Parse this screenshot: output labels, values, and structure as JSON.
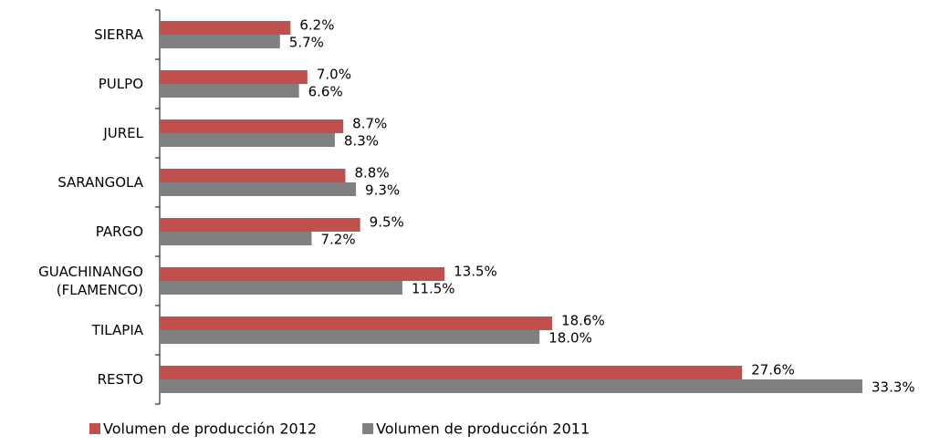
{
  "chart_data": {
    "type": "hbar",
    "categories": [
      "SIERRA",
      "PULPO",
      "JUREL",
      "SARANGOLA",
      "PARGO",
      "GUACHINANGO (FLAMENCO)",
      "TILAPIA",
      "RESTO"
    ],
    "series": [
      {
        "name": "Volumen de producción 2012",
        "color": "#c0504d",
        "values": [
          6.2,
          7.0,
          8.7,
          8.8,
          9.5,
          13.5,
          18.6,
          27.6
        ],
        "value_labels": [
          "6.2%",
          "7.0%",
          "8.7%",
          "8.8%",
          "9.5%",
          "13.5%",
          "18.6%",
          "27.6%"
        ]
      },
      {
        "name": "Volumen de producción 2011",
        "color": "#808080",
        "values": [
          5.7,
          6.6,
          8.3,
          9.3,
          7.2,
          11.5,
          18.0,
          33.3
        ],
        "value_labels": [
          "5.7%",
          "6.6%",
          "8.3%",
          "9.3%",
          "7.2%",
          "11.5%",
          "18.0%",
          "33.3%"
        ]
      }
    ],
    "legend": "bottom"
  }
}
